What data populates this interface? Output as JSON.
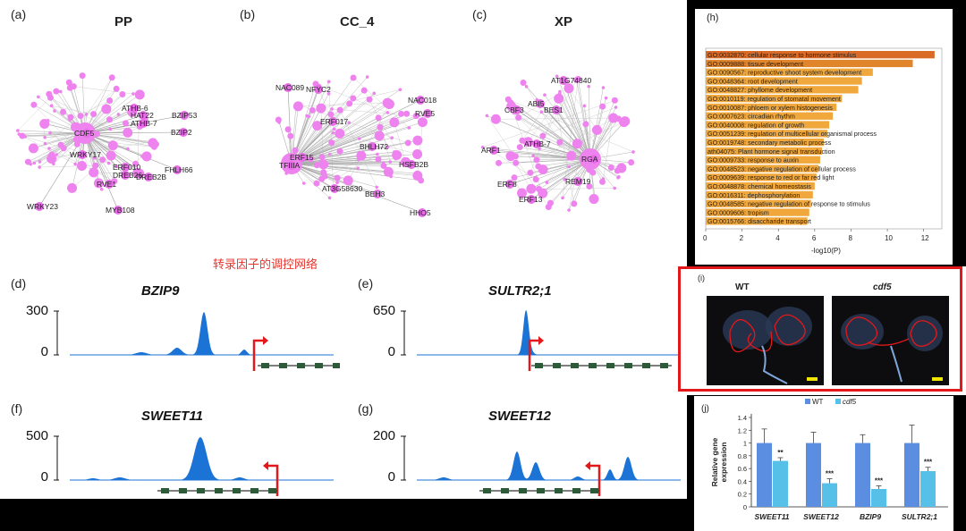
{
  "panels": {
    "a": {
      "letter": "(a)",
      "title": "PP",
      "nodes": [
        "ATHB-6",
        "HAT22",
        "BZIP53",
        "ATHB-7",
        "CDF5",
        "BZIP2",
        "WRKY17",
        "ERF010",
        "FHLH66",
        "DREB26",
        "DREB2B",
        "RVE1",
        "MYB108",
        "WRKY23"
      ]
    },
    "b": {
      "letter": "(b)",
      "title": "CC_4",
      "nodes": [
        "NAC089",
        "NFYC2",
        "NAC018",
        "RVE5",
        "ERF017",
        "BHLH72",
        "TFIIIA",
        "ERF15",
        "HSFB2B",
        "AT3G58630",
        "BEH3",
        "HHO5"
      ]
    },
    "c": {
      "letter": "(c)",
      "title": "XP",
      "nodes": [
        "AT1G74840",
        "ABI5",
        "CBF3",
        "BES1",
        "ARF1",
        "ATHB-7",
        "RGA",
        "ERF8",
        "REM19",
        "ERF13"
      ]
    },
    "network_caption": "转录因子的调控网络",
    "tracks": [
      {
        "letter": "(d)",
        "gene": "BZIP9",
        "ymax": "300",
        "ymin": "0"
      },
      {
        "letter": "(e)",
        "gene": "SULTR2;1",
        "ymax": "650",
        "ymin": "0"
      },
      {
        "letter": "(f)",
        "gene": "SWEET11",
        "ymax": "500",
        "ymin": "0"
      },
      {
        "letter": "(g)",
        "gene": "SWEET12",
        "ymax": "200",
        "ymin": "0"
      }
    ],
    "h": {
      "letter": "(h)",
      "xlabel": "-log10(P)",
      "xticks": [
        "0",
        "2",
        "4",
        "6",
        "8",
        "10",
        "12"
      ],
      "terms": [
        {
          "label": "GO:0032870: cellular response to hormone stimulus",
          "value": 12.6
        },
        {
          "label": "GO:0009888: tissue development",
          "value": 11.4
        },
        {
          "label": "GO:0090567: reproductive shoot system development",
          "value": 9.2
        },
        {
          "label": "GO:0048364: root development",
          "value": 8.6
        },
        {
          "label": "GO:0048827: phyllome development",
          "value": 8.4
        },
        {
          "label": "GO:0010119: regulation of stomatal movement",
          "value": 7.5
        },
        {
          "label": "GO:0010087: phloem or xylem histogenesis",
          "value": 7.2
        },
        {
          "label": "GO:0007623: circadian rhythm",
          "value": 7.0
        },
        {
          "label": "GO:0040008: regulation of growth",
          "value": 6.8
        },
        {
          "label": "GO:0051239: regulation of multicellular organismal process",
          "value": 6.7
        },
        {
          "label": "GO:0019748: secondary metabolic process",
          "value": 6.5
        },
        {
          "label": "ath04075: Plant hormone signal transduction",
          "value": 6.4
        },
        {
          "label": "GO:0009733: response to auxin",
          "value": 6.3
        },
        {
          "label": "GO:0048523: negative regulation of cellular process",
          "value": 6.2
        },
        {
          "label": "GO:0009639: response to red or far red light",
          "value": 6.1
        },
        {
          "label": "GO:0048878: chemical homeostasis",
          "value": 6.0
        },
        {
          "label": "GO:0016311: dephosphorylation",
          "value": 5.9
        },
        {
          "label": "GO:0048585: negative regulation of response to stimulus",
          "value": 5.8
        },
        {
          "label": "GO:0009606: tropism",
          "value": 5.7
        },
        {
          "label": "GO:0015766: disaccharide transport",
          "value": 5.6
        }
      ]
    },
    "i": {
      "letter": "(i)",
      "wt": "WT",
      "mutant": "cdf5"
    },
    "j": {
      "letter": "(j)"
    }
  },
  "chart_data": {
    "type": "bar",
    "categories": [
      "SWEET11",
      "SWEET12",
      "BZIP9",
      "SULTR2;1"
    ],
    "series": [
      {
        "name": "WT",
        "values": [
          1.0,
          1.0,
          1.0,
          1.0
        ],
        "errors": [
          0.22,
          0.17,
          0.13,
          0.28
        ],
        "color": "#5b8ee0"
      },
      {
        "name": "cdf5",
        "values": [
          0.72,
          0.37,
          0.28,
          0.56
        ],
        "errors": [
          0.05,
          0.07,
          0.05,
          0.06
        ],
        "color": "#56c0e8"
      }
    ],
    "significance": [
      "**",
      "***",
      "***",
      "***"
    ],
    "ylabel": "Relative gene expression",
    "ylim": [
      0,
      1.4
    ],
    "yticks": [
      "0",
      "0.2",
      "0.4",
      "0.6",
      "0.8",
      "1",
      "1.2",
      "1.4"
    ]
  }
}
